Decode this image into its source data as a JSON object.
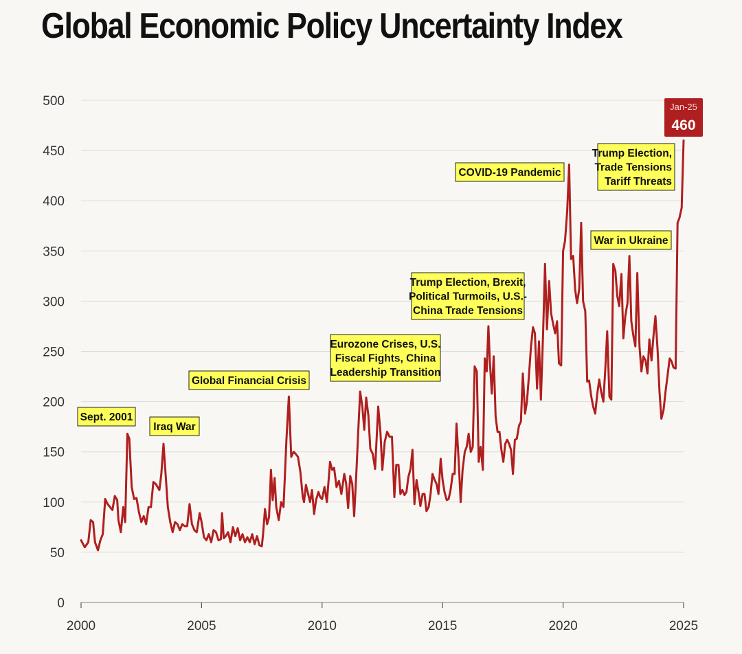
{
  "chart_data": {
    "type": "line",
    "title": "Global Economic Policy Uncertainty Index",
    "xlabel": "",
    "ylabel": "",
    "xlim": [
      2000,
      2025
    ],
    "ylim": [
      0,
      500
    ],
    "x_ticks": [
      2000,
      2005,
      2010,
      2015,
      2020,
      2025
    ],
    "x_tick_labels": [
      "2000",
      "2005",
      "2010",
      "2015",
      "2020",
      "2025"
    ],
    "y_ticks": [
      0,
      50,
      100,
      150,
      200,
      250,
      300,
      350,
      400,
      450,
      500
    ],
    "y_tick_labels": [
      "0",
      "50",
      "100",
      "150",
      "200",
      "250",
      "300",
      "350",
      "400",
      "450",
      "500"
    ],
    "grid": "horizontal",
    "line_color": "#b01f1f",
    "series": [
      {
        "name": "Global Economic Policy Uncertainty Index",
        "points": [
          [
            2000.0,
            62
          ],
          [
            2000.15,
            55
          ],
          [
            2000.3,
            60
          ],
          [
            2000.4,
            82
          ],
          [
            2000.5,
            80
          ],
          [
            2000.58,
            60
          ],
          [
            2000.7,
            52
          ],
          [
            2000.8,
            62
          ],
          [
            2000.9,
            68
          ],
          [
            2001.0,
            103
          ],
          [
            2001.1,
            98
          ],
          [
            2001.2,
            95
          ],
          [
            2001.3,
            92
          ],
          [
            2001.4,
            106
          ],
          [
            2001.5,
            102
          ],
          [
            2001.55,
            82
          ],
          [
            2001.65,
            70
          ],
          [
            2001.75,
            95
          ],
          [
            2001.83,
            80
          ],
          [
            2001.92,
            168
          ],
          [
            2002.0,
            163
          ],
          [
            2002.1,
            115
          ],
          [
            2002.2,
            103
          ],
          [
            2002.3,
            104
          ],
          [
            2002.4,
            90
          ],
          [
            2002.5,
            80
          ],
          [
            2002.6,
            86
          ],
          [
            2002.7,
            78
          ],
          [
            2002.8,
            95
          ],
          [
            2002.9,
            95
          ],
          [
            2003.0,
            120
          ],
          [
            2003.1,
            118
          ],
          [
            2003.25,
            112
          ],
          [
            2003.33,
            128
          ],
          [
            2003.42,
            158
          ],
          [
            2003.5,
            130
          ],
          [
            2003.6,
            95
          ],
          [
            2003.7,
            80
          ],
          [
            2003.8,
            70
          ],
          [
            2003.9,
            80
          ],
          [
            2004.0,
            78
          ],
          [
            2004.1,
            72
          ],
          [
            2004.2,
            78
          ],
          [
            2004.3,
            76
          ],
          [
            2004.4,
            76
          ],
          [
            2004.5,
            98
          ],
          [
            2004.6,
            78
          ],
          [
            2004.7,
            72
          ],
          [
            2004.8,
            70
          ],
          [
            2004.92,
            89
          ],
          [
            2005.0,
            80
          ],
          [
            2005.1,
            65
          ],
          [
            2005.2,
            62
          ],
          [
            2005.3,
            68
          ],
          [
            2005.4,
            60
          ],
          [
            2005.5,
            72
          ],
          [
            2005.6,
            70
          ],
          [
            2005.7,
            62
          ],
          [
            2005.8,
            63
          ],
          [
            2005.85,
            89
          ],
          [
            2005.92,
            64
          ],
          [
            2006.0,
            66
          ],
          [
            2006.1,
            70
          ],
          [
            2006.2,
            60
          ],
          [
            2006.3,
            75
          ],
          [
            2006.4,
            66
          ],
          [
            2006.5,
            74
          ],
          [
            2006.6,
            62
          ],
          [
            2006.7,
            68
          ],
          [
            2006.8,
            60
          ],
          [
            2006.9,
            65
          ],
          [
            2007.0,
            60
          ],
          [
            2007.1,
            68
          ],
          [
            2007.2,
            58
          ],
          [
            2007.3,
            66
          ],
          [
            2007.4,
            57
          ],
          [
            2007.5,
            56
          ],
          [
            2007.55,
            68
          ],
          [
            2007.63,
            93
          ],
          [
            2007.72,
            78
          ],
          [
            2007.8,
            85
          ],
          [
            2007.88,
            132
          ],
          [
            2007.95,
            102
          ],
          [
            2008.03,
            124
          ],
          [
            2008.1,
            95
          ],
          [
            2008.2,
            82
          ],
          [
            2008.3,
            100
          ],
          [
            2008.4,
            95
          ],
          [
            2008.52,
            162
          ],
          [
            2008.62,
            205
          ],
          [
            2008.72,
            145
          ],
          [
            2008.82,
            150
          ],
          [
            2008.9,
            148
          ],
          [
            2009.0,
            145
          ],
          [
            2009.1,
            130
          ],
          [
            2009.2,
            105
          ],
          [
            2009.25,
            100
          ],
          [
            2009.33,
            117
          ],
          [
            2009.42,
            108
          ],
          [
            2009.5,
            100
          ],
          [
            2009.58,
            112
          ],
          [
            2009.67,
            88
          ],
          [
            2009.75,
            102
          ],
          [
            2009.85,
            110
          ],
          [
            2009.92,
            105
          ],
          [
            2010.0,
            103
          ],
          [
            2010.1,
            115
          ],
          [
            2010.2,
            100
          ],
          [
            2010.33,
            140
          ],
          [
            2010.42,
            132
          ],
          [
            2010.5,
            134
          ],
          [
            2010.6,
            115
          ],
          [
            2010.7,
            121
          ],
          [
            2010.8,
            108
          ],
          [
            2010.92,
            128
          ],
          [
            2011.0,
            118
          ],
          [
            2011.08,
            94
          ],
          [
            2011.17,
            126
          ],
          [
            2011.25,
            118
          ],
          [
            2011.33,
            86
          ],
          [
            2011.42,
            128
          ],
          [
            2011.5,
            170
          ],
          [
            2011.58,
            210
          ],
          [
            2011.67,
            195
          ],
          [
            2011.75,
            172
          ],
          [
            2011.83,
            204
          ],
          [
            2011.92,
            186
          ],
          [
            2012.0,
            153
          ],
          [
            2012.1,
            148
          ],
          [
            2012.2,
            133
          ],
          [
            2012.33,
            195
          ],
          [
            2012.42,
            170
          ],
          [
            2012.5,
            132
          ],
          [
            2012.6,
            160
          ],
          [
            2012.7,
            170
          ],
          [
            2012.8,
            165
          ],
          [
            2012.9,
            165
          ],
          [
            2013.0,
            105
          ],
          [
            2013.08,
            137
          ],
          [
            2013.17,
            137
          ],
          [
            2013.25,
            108
          ],
          [
            2013.33,
            112
          ],
          [
            2013.42,
            107
          ],
          [
            2013.5,
            110
          ],
          [
            2013.58,
            125
          ],
          [
            2013.67,
            133
          ],
          [
            2013.75,
            152
          ],
          [
            2013.83,
            98
          ],
          [
            2013.92,
            122
          ],
          [
            2014.0,
            110
          ],
          [
            2014.08,
            96
          ],
          [
            2014.17,
            108
          ],
          [
            2014.25,
            108
          ],
          [
            2014.33,
            91
          ],
          [
            2014.42,
            95
          ],
          [
            2014.5,
            108
          ],
          [
            2014.58,
            128
          ],
          [
            2014.67,
            122
          ],
          [
            2014.75,
            118
          ],
          [
            2014.83,
            108
          ],
          [
            2014.92,
            143
          ],
          [
            2015.0,
            122
          ],
          [
            2015.08,
            110
          ],
          [
            2015.17,
            102
          ],
          [
            2015.25,
            103
          ],
          [
            2015.33,
            112
          ],
          [
            2015.42,
            128
          ],
          [
            2015.5,
            128
          ],
          [
            2015.58,
            178
          ],
          [
            2015.67,
            140
          ],
          [
            2015.75,
            100
          ],
          [
            2015.83,
            132
          ],
          [
            2015.92,
            150
          ],
          [
            2016.0,
            155
          ],
          [
            2016.08,
            168
          ],
          [
            2016.17,
            150
          ],
          [
            2016.25,
            155
          ],
          [
            2016.33,
            235
          ],
          [
            2016.42,
            230
          ],
          [
            2016.5,
            140
          ],
          [
            2016.58,
            155
          ],
          [
            2016.67,
            132
          ],
          [
            2016.75,
            243
          ],
          [
            2016.83,
            230
          ],
          [
            2016.9,
            275
          ],
          [
            2016.96,
            240
          ],
          [
            2017.04,
            208
          ],
          [
            2017.12,
            245
          ],
          [
            2017.2,
            185
          ],
          [
            2017.28,
            170
          ],
          [
            2017.36,
            170
          ],
          [
            2017.44,
            152
          ],
          [
            2017.52,
            140
          ],
          [
            2017.6,
            158
          ],
          [
            2017.68,
            162
          ],
          [
            2017.76,
            158
          ],
          [
            2017.84,
            152
          ],
          [
            2017.92,
            128
          ],
          [
            2018.0,
            162
          ],
          [
            2018.08,
            163
          ],
          [
            2018.17,
            176
          ],
          [
            2018.25,
            180
          ],
          [
            2018.33,
            228
          ],
          [
            2018.42,
            188
          ],
          [
            2018.5,
            200
          ],
          [
            2018.58,
            225
          ],
          [
            2018.67,
            255
          ],
          [
            2018.75,
            274
          ],
          [
            2018.83,
            268
          ],
          [
            2018.92,
            213
          ],
          [
            2019.0,
            260
          ],
          [
            2019.08,
            202
          ],
          [
            2019.17,
            268
          ],
          [
            2019.25,
            337
          ],
          [
            2019.33,
            272
          ],
          [
            2019.42,
            320
          ],
          [
            2019.5,
            288
          ],
          [
            2019.58,
            278
          ],
          [
            2019.67,
            268
          ],
          [
            2019.75,
            280
          ],
          [
            2019.83,
            238
          ],
          [
            2019.92,
            236
          ],
          [
            2020.0,
            350
          ],
          [
            2020.08,
            360
          ],
          [
            2020.17,
            390
          ],
          [
            2020.25,
            436
          ],
          [
            2020.33,
            342
          ],
          [
            2020.42,
            345
          ],
          [
            2020.5,
            312
          ],
          [
            2020.58,
            298
          ],
          [
            2020.67,
            312
          ],
          [
            2020.75,
            378
          ],
          [
            2020.83,
            300
          ],
          [
            2020.92,
            290
          ],
          [
            2021.0,
            220
          ],
          [
            2021.08,
            221
          ],
          [
            2021.17,
            205
          ],
          [
            2021.25,
            195
          ],
          [
            2021.33,
            188
          ],
          [
            2021.42,
            208
          ],
          [
            2021.5,
            222
          ],
          [
            2021.58,
            210
          ],
          [
            2021.67,
            200
          ],
          [
            2021.75,
            232
          ],
          [
            2021.83,
            270
          ],
          [
            2021.92,
            205
          ],
          [
            2022.0,
            202
          ],
          [
            2022.08,
            337
          ],
          [
            2022.17,
            330
          ],
          [
            2022.25,
            305
          ],
          [
            2022.33,
            295
          ],
          [
            2022.42,
            327
          ],
          [
            2022.5,
            263
          ],
          [
            2022.58,
            285
          ],
          [
            2022.67,
            298
          ],
          [
            2022.75,
            345
          ],
          [
            2022.83,
            280
          ],
          [
            2022.92,
            265
          ],
          [
            2023.0,
            255
          ],
          [
            2023.08,
            328
          ],
          [
            2023.17,
            255
          ],
          [
            2023.25,
            230
          ],
          [
            2023.33,
            245
          ],
          [
            2023.42,
            241
          ],
          [
            2023.5,
            228
          ],
          [
            2023.58,
            262
          ],
          [
            2023.67,
            241
          ],
          [
            2023.75,
            265
          ],
          [
            2023.83,
            285
          ],
          [
            2023.92,
            252
          ],
          [
            2024.0,
            210
          ],
          [
            2024.08,
            183
          ],
          [
            2024.17,
            192
          ],
          [
            2024.25,
            210
          ],
          [
            2024.33,
            225
          ],
          [
            2024.42,
            243
          ],
          [
            2024.5,
            240
          ],
          [
            2024.58,
            234
          ],
          [
            2024.67,
            233
          ],
          [
            2024.75,
            378
          ],
          [
            2024.83,
            383
          ],
          [
            2024.92,
            393
          ],
          [
            2025.0,
            460
          ]
        ]
      }
    ],
    "annotations": [
      {
        "lines": [
          "Sept. 2001"
        ]
      },
      {
        "lines": [
          "Iraq War"
        ]
      },
      {
        "lines": [
          "Global Financial Crisis"
        ]
      },
      {
        "lines": [
          "Eurozone Crises, U.S.",
          "Fiscal Fights, China",
          "Leadership Transition"
        ]
      },
      {
        "lines": [
          "Trump Election, Brexit,",
          "Political Turmoils, U.S.-",
          "China Trade Tensions"
        ]
      },
      {
        "lines": [
          "COVID-19 Pandemic"
        ]
      },
      {
        "lines": [
          "War in Ukraine"
        ]
      },
      {
        "lines": [
          "Trump Election,",
          "Trade Tensions",
          "Tariff Threats"
        ]
      }
    ],
    "latest_badge": {
      "label": "Jan-25",
      "value": "460",
      "color": "#b01f1f"
    }
  }
}
